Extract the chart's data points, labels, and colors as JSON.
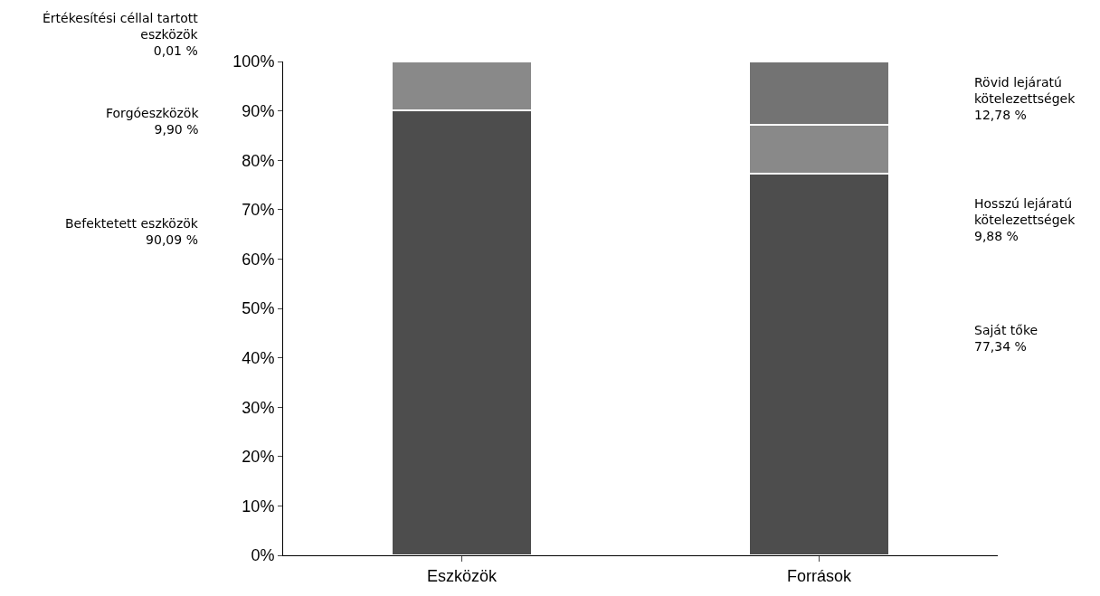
{
  "chart_data": {
    "type": "bar",
    "stacked": true,
    "categories": [
      "Eszközök",
      "Források"
    ],
    "series": [
      {
        "color": "#4d4d4d",
        "values": [
          90.09,
          77.34
        ]
      },
      {
        "color": "#898989",
        "values": [
          9.9,
          9.88
        ]
      },
      {
        "colors": [
          "#737373",
          "#737373"
        ],
        "values": [
          0.01,
          12.78
        ]
      }
    ],
    "annotations": [
      "Értékesítési céllal tartott\neszközök\n0,01 %",
      "Forgóeszközök\n9,90 %",
      "Befektetett eszközök\n90,09 %",
      "Rövid lejáratú\nkötelezettségek\n12,78 %",
      "Hosszú lejáratú\nkötelezettségek\n9,88 %",
      "Saját tőke\n77,34 %"
    ],
    "ylim": [
      0,
      100
    ],
    "yticks": [
      {
        "value": 0,
        "label": "0%"
      },
      {
        "value": 10,
        "label": "10%"
      },
      {
        "value": 20,
        "label": "20%"
      },
      {
        "value": 30,
        "label": "30%"
      },
      {
        "value": 40,
        "label": "40%"
      },
      {
        "value": 50,
        "label": "50%"
      },
      {
        "value": 60,
        "label": "60%"
      },
      {
        "value": 70,
        "label": "70%"
      },
      {
        "value": 80,
        "label": "80%"
      },
      {
        "value": 90,
        "label": "90%"
      },
      {
        "value": 100,
        "label": "100%"
      }
    ],
    "legend": false
  }
}
